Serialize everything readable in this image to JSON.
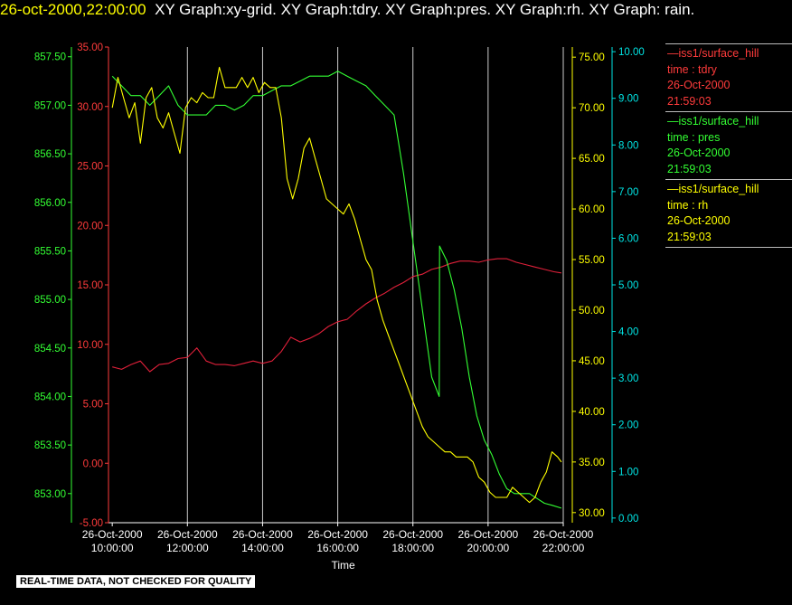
{
  "header": {
    "datetime": "26-oct-2000,22:00:00",
    "description": "XY Graph:xy-grid.  XY Graph:tdry.  XY Graph:pres.  XY Graph:rh.  XY Graph: rain."
  },
  "colors": {
    "background": "#000000",
    "datetime": "#ffff00",
    "tdry": "#ff3b3b",
    "tdry_line": "#e0203a",
    "pres": "#33ff33",
    "rh": "#ffff00",
    "rain": "#00e5e5",
    "grid": "#ffffff",
    "axis_text": "#ffffff"
  },
  "legend": [
    {
      "key": "tdry",
      "lines": [
        "—iss1/surface_hill",
        "time : tdry",
        "26-Oct-2000",
        "21:59:03"
      ]
    },
    {
      "key": "pres",
      "lines": [
        "—iss1/surface_hill",
        "time : pres",
        "26-Oct-2000",
        "21:59:03"
      ]
    },
    {
      "key": "rh",
      "lines": [
        "—iss1/surface_hill",
        "time : rh",
        "26-Oct-2000",
        "21:59:03"
      ]
    }
  ],
  "quality_note": "REAL-TIME DATA, NOT CHECKED FOR QUALITY",
  "chart_data": {
    "type": "line",
    "xlabel": "Time",
    "x_unit": "hour of 26-Oct-2000",
    "xlim": [
      9.9,
      22.0
    ],
    "x_ticks": [
      {
        "x": 10,
        "date": "26-Oct-2000",
        "time": "10:00:00"
      },
      {
        "x": 12,
        "date": "26-Oct-2000",
        "time": "12:00:00"
      },
      {
        "x": 14,
        "date": "26-Oct-2000",
        "time": "14:00:00"
      },
      {
        "x": 16,
        "date": "26-Oct-2000",
        "time": "16:00:00"
      },
      {
        "x": 18,
        "date": "26-Oct-2000",
        "time": "18:00:00"
      },
      {
        "x": 20,
        "date": "26-Oct-2000",
        "time": "20:00:00"
      },
      {
        "x": 22,
        "date": "26-Oct-2000",
        "time": "22:00:00"
      }
    ],
    "grid": "vertical at x ticks",
    "axes": [
      {
        "key": "pres",
        "side": "left-outer",
        "ylim": [
          852.7,
          857.6
        ],
        "ticks": [
          "853.00",
          "853.50",
          "854.00",
          "854.50",
          "855.00",
          "855.50",
          "856.00",
          "856.50",
          "857.00",
          "857.50"
        ]
      },
      {
        "key": "tdry",
        "side": "left-inner",
        "ylim": [
          -5,
          35
        ],
        "ticks": [
          "-5.00",
          "0.00",
          "5.00",
          "10.00",
          "15.00",
          "20.00",
          "25.00",
          "30.00",
          "35.00"
        ]
      },
      {
        "key": "rh",
        "side": "right-inner",
        "ylim": [
          29,
          76
        ],
        "ticks": [
          "30.00",
          "35.00",
          "40.00",
          "45.00",
          "50.00",
          "55.00",
          "60.00",
          "65.00",
          "70.00",
          "75.00"
        ]
      },
      {
        "key": "rain",
        "side": "right-outer",
        "ylim": [
          -0.1,
          10.1
        ],
        "ticks": [
          "0.00",
          "1.00",
          "2.00",
          "3.00",
          "4.00",
          "5.00",
          "6.00",
          "7.00",
          "8.00",
          "9.00",
          "10.00"
        ]
      }
    ],
    "series": [
      {
        "key": "tdry",
        "axis": "tdry",
        "x": [
          10.0,
          10.25,
          10.5,
          10.75,
          11.0,
          11.25,
          11.5,
          11.75,
          12.0,
          12.25,
          12.5,
          12.75,
          13.0,
          13.25,
          13.5,
          13.75,
          14.0,
          14.25,
          14.5,
          14.75,
          15.0,
          15.25,
          15.5,
          15.75,
          16.0,
          16.25,
          16.5,
          16.75,
          17.0,
          17.25,
          17.5,
          17.75,
          18.0,
          18.25,
          18.5,
          18.75,
          19.0,
          19.25,
          19.5,
          19.75,
          20.0,
          20.25,
          20.5,
          20.75,
          21.0,
          21.25,
          21.5,
          21.75,
          21.95
        ],
        "y": [
          8.1,
          7.9,
          8.3,
          8.6,
          7.7,
          8.3,
          8.4,
          8.8,
          8.9,
          9.7,
          8.6,
          8.3,
          8.3,
          8.2,
          8.4,
          8.6,
          8.4,
          8.6,
          9.4,
          10.6,
          10.2,
          10.5,
          10.9,
          11.5,
          11.9,
          12.1,
          12.8,
          13.4,
          13.9,
          14.3,
          14.8,
          15.2,
          15.7,
          15.9,
          16.3,
          16.5,
          16.8,
          17.0,
          17.0,
          16.9,
          17.1,
          17.2,
          17.2,
          16.9,
          16.7,
          16.5,
          16.3,
          16.1,
          16.0
        ]
      },
      {
        "key": "pres",
        "axis": "pres",
        "x": [
          10.0,
          10.25,
          10.5,
          10.75,
          11.0,
          11.25,
          11.5,
          11.75,
          12.0,
          12.25,
          12.5,
          12.75,
          13.0,
          13.25,
          13.5,
          13.75,
          14.0,
          14.25,
          14.5,
          14.75,
          15.0,
          15.25,
          15.5,
          15.75,
          16.0,
          16.25,
          16.5,
          16.75,
          17.0,
          17.25,
          17.5,
          17.75,
          18.0,
          18.25,
          18.5,
          18.7,
          18.71,
          18.9,
          19.1,
          19.3,
          19.5,
          19.7,
          19.9,
          20.1,
          20.3,
          20.5,
          20.7,
          20.9,
          21.1,
          21.3,
          21.5,
          21.7,
          21.95
        ],
        "y": [
          857.3,
          857.2,
          857.1,
          857.1,
          857.0,
          857.1,
          857.2,
          857.0,
          856.9,
          856.9,
          856.9,
          857.0,
          857.0,
          856.95,
          857.0,
          857.1,
          857.1,
          857.15,
          857.2,
          857.2,
          857.25,
          857.3,
          857.3,
          857.3,
          857.35,
          857.3,
          857.25,
          857.2,
          857.1,
          857.0,
          856.9,
          856.3,
          855.6,
          854.9,
          854.2,
          854.0,
          855.55,
          855.4,
          855.1,
          854.7,
          854.2,
          853.8,
          853.55,
          853.4,
          853.2,
          853.05,
          853.0,
          853.0,
          853.0,
          852.95,
          852.9,
          852.88,
          852.85
        ]
      },
      {
        "key": "rh",
        "axis": "rh",
        "x": [
          10.0,
          10.15,
          10.3,
          10.45,
          10.6,
          10.75,
          10.9,
          11.05,
          11.2,
          11.35,
          11.5,
          11.65,
          11.8,
          11.95,
          12.1,
          12.25,
          12.4,
          12.55,
          12.7,
          12.85,
          13.0,
          13.15,
          13.3,
          13.45,
          13.6,
          13.75,
          13.9,
          14.05,
          14.2,
          14.35,
          14.5,
          14.65,
          14.8,
          14.95,
          15.1,
          15.25,
          15.4,
          15.55,
          15.7,
          15.85,
          16.0,
          16.15,
          16.3,
          16.45,
          16.6,
          16.75,
          16.9,
          17.05,
          17.2,
          17.35,
          17.5,
          17.65,
          17.8,
          17.95,
          18.1,
          18.25,
          18.4,
          18.55,
          18.7,
          18.85,
          19.0,
          19.15,
          19.3,
          19.45,
          19.6,
          19.75,
          19.9,
          20.05,
          20.2,
          20.35,
          20.5,
          20.65,
          20.8,
          20.95,
          21.1,
          21.25,
          21.4,
          21.55,
          21.7,
          21.85,
          21.95
        ],
        "y": [
          70,
          73,
          71,
          69,
          70.5,
          66.5,
          71,
          72,
          69,
          68,
          69.5,
          67.5,
          65.5,
          70,
          71,
          70.5,
          71.5,
          71,
          71,
          74,
          72,
          72,
          72,
          73,
          72,
          73,
          71.5,
          72.5,
          72,
          72,
          69,
          63,
          61,
          63,
          66,
          67,
          65,
          63,
          61,
          60.5,
          60,
          59.5,
          60.5,
          59,
          57,
          55,
          54,
          51,
          49,
          47.5,
          46,
          44.5,
          43,
          41.5,
          40,
          38.5,
          37.5,
          37,
          36.5,
          36,
          36,
          35.5,
          35.5,
          35.5,
          35,
          33.5,
          33,
          32,
          31.5,
          31.5,
          31.5,
          32.5,
          32,
          31.5,
          31,
          31.5,
          33,
          34,
          36,
          35.5,
          35
        ]
      }
    ]
  }
}
